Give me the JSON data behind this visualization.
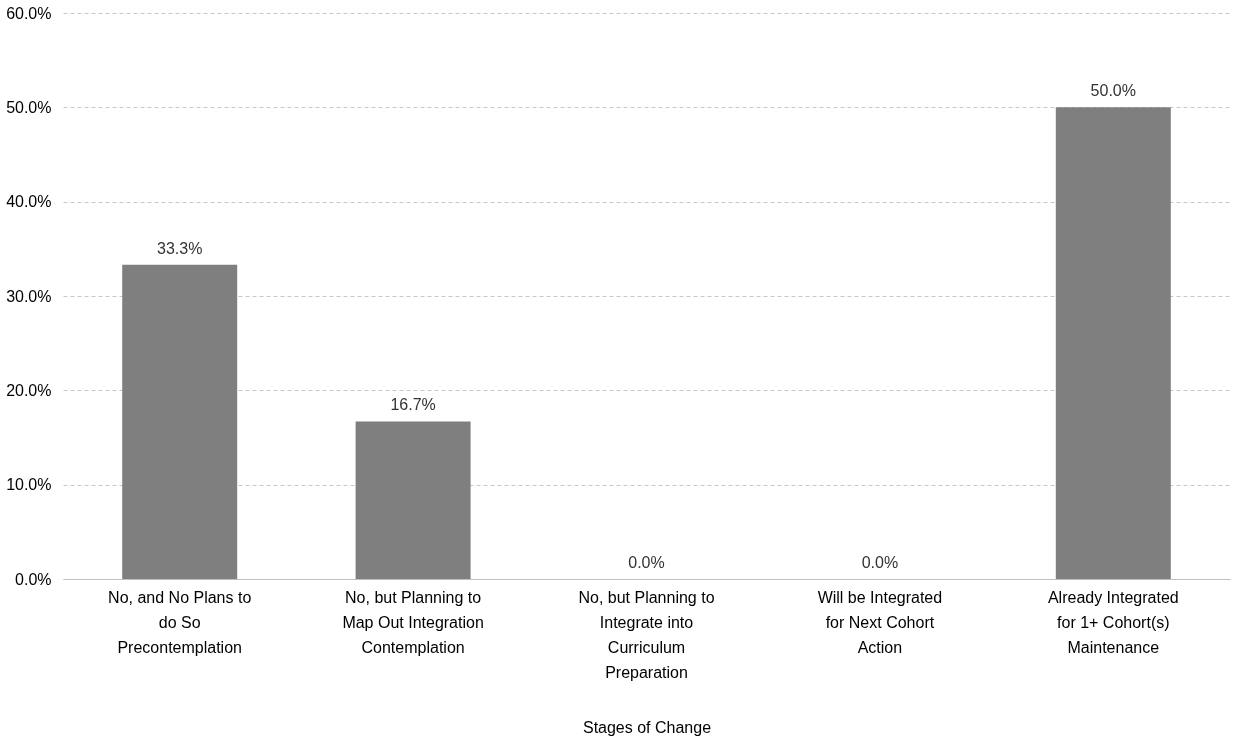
{
  "chart_data": {
    "type": "bar",
    "categories": [
      "No, and No Plans to do So",
      "No, but Planning to Map Out Integration",
      "No, but Planning to Integrate into Curriculum",
      "Will be Integrated for Next Cohort",
      "Already Integrated for 1+ Cohort(s)"
    ],
    "values": [
      33.3,
      16.7,
      0.0,
      0.0,
      50.0
    ],
    "value_labels": [
      "33.3%",
      "16.7%",
      "0.0%",
      "0.0%",
      "50.0%"
    ],
    "color": "#7f7f7f",
    "xlabel": "Stages of Change",
    "annotations": [
      "Precontemplation",
      "Contemplation",
      "Preparation",
      "Action",
      "Maintenance"
    ],
    "ylim": [
      0,
      60
    ],
    "yticks": [
      {
        "value": 0,
        "label": "0.0%"
      },
      {
        "value": 10,
        "label": "10.0%"
      },
      {
        "value": 20,
        "label": "20.0%"
      },
      {
        "value": 30,
        "label": "30.0%"
      },
      {
        "value": 40,
        "label": "40.0%"
      },
      {
        "value": 50,
        "label": "50.0%"
      },
      {
        "value": 60,
        "label": "60.0%"
      }
    ],
    "grid": "y"
  }
}
